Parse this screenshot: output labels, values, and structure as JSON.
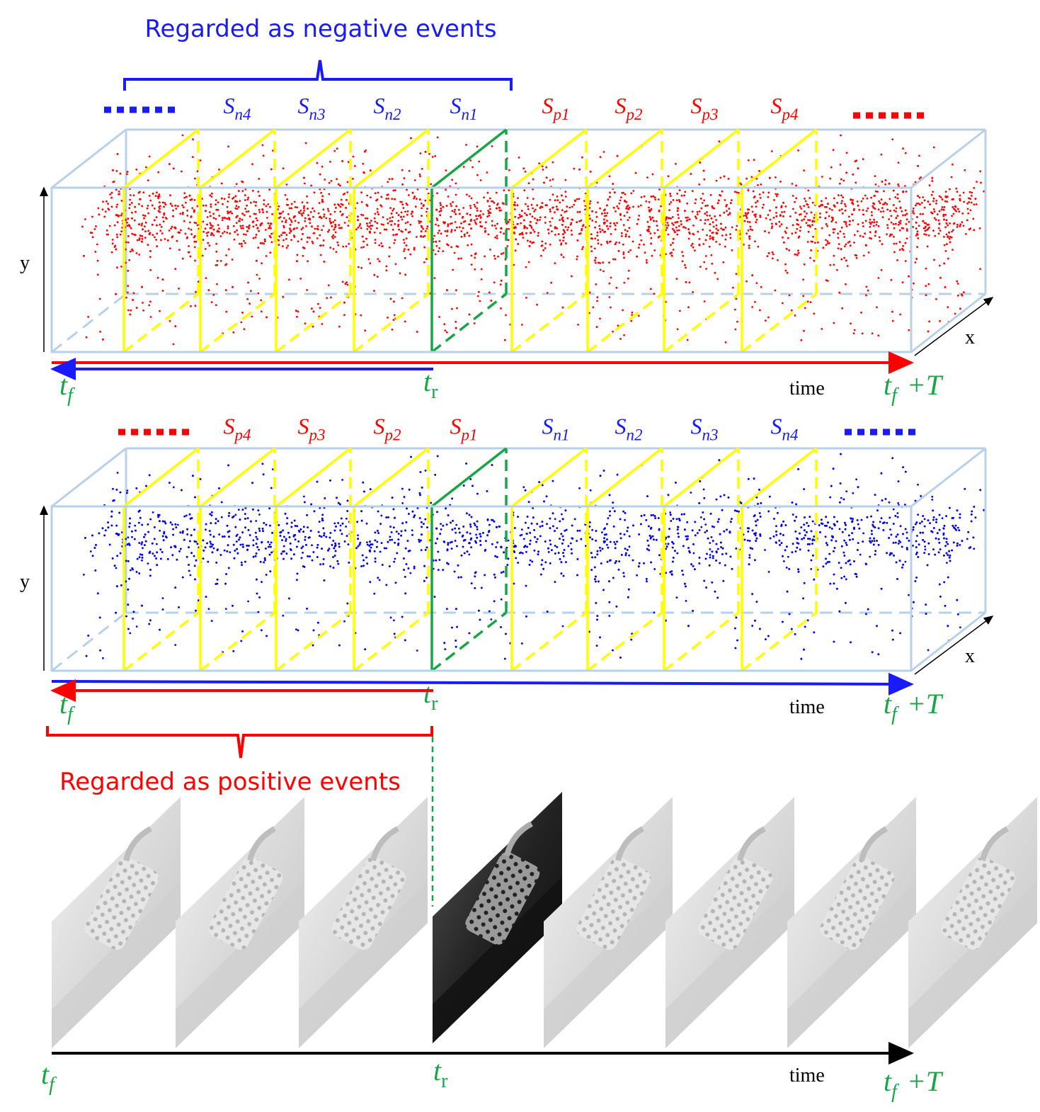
{
  "top": {
    "bracket_label": "Regarded as negative events",
    "dot_color": "#ff0000",
    "slice_labels": [
      {
        "base": "S",
        "sub": "n4",
        "color": "#1a1aff"
      },
      {
        "base": "S",
        "sub": "n3",
        "color": "#1a1aff"
      },
      {
        "base": "S",
        "sub": "n2",
        "color": "#1a1aff"
      },
      {
        "base": "S",
        "sub": "n1",
        "color": "#1a1aff"
      },
      {
        "base": "S",
        "sub": "p1",
        "color": "#ff0000"
      },
      {
        "base": "S",
        "sub": "p2",
        "color": "#ff0000"
      },
      {
        "base": "S",
        "sub": "p3",
        "color": "#ff0000"
      },
      {
        "base": "S",
        "sub": "p4",
        "color": "#ff0000"
      }
    ],
    "y_axis": "y",
    "x_axis": "x",
    "time_axis": "time",
    "start": {
      "base": "t",
      "sub": "f"
    },
    "ref": {
      "base": "t",
      "sub": "r"
    },
    "end": {
      "base": "t",
      "sub": "f",
      "suffix": "+T"
    }
  },
  "middle": {
    "bracket_label": "Regarded as positive events",
    "dot_color": "#0000ee",
    "slice_labels": [
      {
        "base": "S",
        "sub": "p4",
        "color": "#ff0000"
      },
      {
        "base": "S",
        "sub": "p3",
        "color": "#ff0000"
      },
      {
        "base": "S",
        "sub": "p2",
        "color": "#ff0000"
      },
      {
        "base": "S",
        "sub": "p1",
        "color": "#ff0000"
      },
      {
        "base": "S",
        "sub": "n1",
        "color": "#1a1aff"
      },
      {
        "base": "S",
        "sub": "n2",
        "color": "#1a1aff"
      },
      {
        "base": "S",
        "sub": "n3",
        "color": "#1a1aff"
      },
      {
        "base": "S",
        "sub": "n4",
        "color": "#1a1aff"
      }
    ],
    "y_axis": "y",
    "x_axis": "x",
    "time_axis": "time",
    "start": {
      "base": "t",
      "sub": "f"
    },
    "ref": {
      "base": "t",
      "sub": "r"
    },
    "end": {
      "base": "t",
      "sub": "f",
      "suffix": "+T"
    }
  },
  "bottom": {
    "time_axis": "time",
    "start": {
      "base": "t",
      "sub": "f"
    },
    "ref": {
      "base": "t",
      "sub": "r"
    },
    "end": {
      "base": "t",
      "sub": "f",
      "suffix": "+T"
    }
  }
}
